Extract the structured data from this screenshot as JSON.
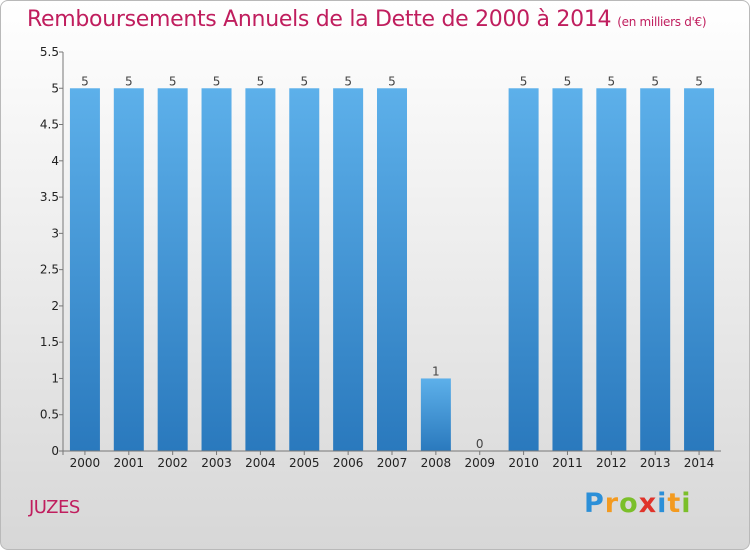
{
  "header": {
    "title": "Remboursements Annuels de la Dette de 2000 à 2014",
    "unit": "(en milliers d'€)"
  },
  "footer": {
    "commune": "JUZES",
    "logo_text": "Proxiti"
  },
  "chart_data": {
    "type": "bar",
    "title": "Remboursements Annuels de la Dette de 2000 à 2014",
    "subtitle": "(en milliers d'€)",
    "categories": [
      "2000",
      "2001",
      "2002",
      "2003",
      "2004",
      "2005",
      "2006",
      "2007",
      "2008",
      "2009",
      "2010",
      "2011",
      "2012",
      "2013",
      "2014"
    ],
    "values": [
      5,
      5,
      5,
      5,
      5,
      5,
      5,
      5,
      1,
      0,
      5,
      5,
      5,
      5,
      5
    ],
    "value_labels": [
      "5",
      "5",
      "5",
      "5",
      "5",
      "5",
      "5",
      "5",
      "1",
      "0",
      "5",
      "5",
      "5",
      "5",
      "5"
    ],
    "yticks": [
      "0",
      "0.5",
      "1",
      "1.5",
      "2",
      "2.5",
      "3",
      "3.5",
      "4",
      "4.5",
      "5",
      "5.5"
    ],
    "ylim": [
      0,
      5.5
    ],
    "grid": false,
    "bar_color_light": "#5db0ea",
    "bar_color_dark": "#2a79bd"
  }
}
